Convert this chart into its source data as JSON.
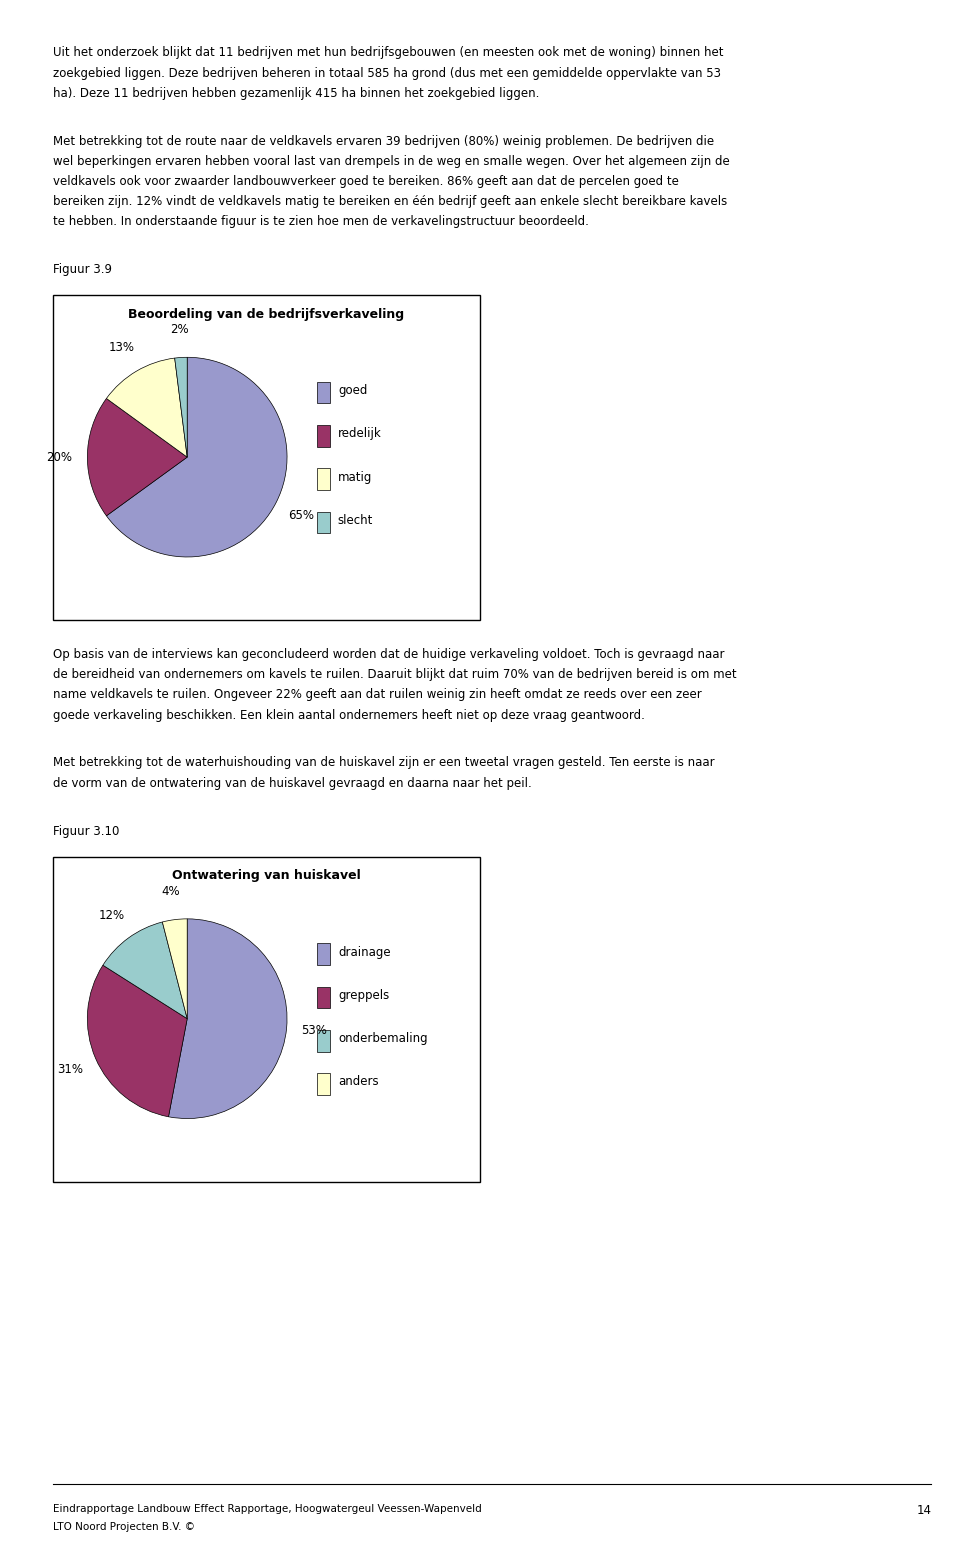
{
  "page_bg": "#ffffff",
  "page_width": 9.6,
  "page_height": 15.47,
  "dpi": 100,
  "header_text": [
    "Uit het onderzoek blijkt dat 11 bedrijven met hun bedrijfsgebouwen (en meesten ook met de woning) binnen het",
    "zoekgebied liggen. Deze bedrijven beheren in totaal 585 ha grond (dus met een gemiddelde oppervlakte van 53",
    "ha). Deze 11 bedrijven hebben gezamenlijk 415 ha binnen het zoekgebied liggen."
  ],
  "para1_text": [
    "Met betrekking tot de route naar de veldkavels ervaren 39 bedrijven (80%) weinig problemen. De bedrijven die",
    "wel beperkingen ervaren hebben vooral last van drempels in de weg en smalle wegen. Over het algemeen zijn de",
    "veldkavels ook voor zwaarder landbouwverkeer goed te bereiken. 86% geeft aan dat de percelen goed te",
    "bereiken zijn. 12% vindt de veldkavels matig te bereiken en één bedrijf geeft aan enkele slecht bereikbare kavels",
    "te hebben. In onderstaande figuur is te zien hoe men de verkavelingstructuur beoordeeld."
  ],
  "figuur1_label": "Figuur 3.9",
  "chart1_title": "Beoordeling van de bedrijfsverkaveling",
  "chart1_sizes": [
    65,
    20,
    13,
    2
  ],
  "chart1_colors": [
    "#9999cc",
    "#993366",
    "#ffffcc",
    "#99cccc"
  ],
  "chart1_legend": [
    "goed",
    "redelijk",
    "matig",
    "slecht"
  ],
  "chart1_legend_colors": [
    "#9999cc",
    "#993366",
    "#ffffcc",
    "#99cccc"
  ],
  "chart1_startangle": 90,
  "para2_text": [
    "Op basis van de interviews kan geconcludeerd worden dat de huidige verkaveling voldoet. Toch is gevraagd naar",
    "de bereidheid van ondernemers om kavels te ruilen. Daaruit blijkt dat ruim 70% van de bedrijven bereid is om met",
    "name veldkavels te ruilen. Ongeveer 22% geeft aan dat ruilen weinig zin heeft omdat ze reeds over een zeer",
    "goede verkaveling beschikken. Een klein aantal ondernemers heeft niet op deze vraag geantwoord."
  ],
  "para3_text": [
    "Met betrekking tot de waterhuishouding van de huiskavel zijn er een tweetal vragen gesteld. Ten eerste is naar",
    "de vorm van de ontwatering van de huiskavel gevraagd en daarna naar het peil."
  ],
  "figuur2_label": "Figuur 3.10",
  "chart2_title": "Ontwatering van huiskavel",
  "chart2_sizes": [
    53,
    31,
    12,
    4
  ],
  "chart2_colors": [
    "#9999cc",
    "#993366",
    "#99cccc",
    "#ffffcc"
  ],
  "chart2_legend": [
    "drainage",
    "greppels",
    "onderbemaling",
    "anders"
  ],
  "chart2_legend_colors": [
    "#9999cc",
    "#993366",
    "#99cccc",
    "#ffffcc"
  ],
  "chart2_startangle": 90,
  "footer_line1": "Eindrapportage Landbouw Effect Rapportage, Hoogwatergeul Veessen-Wapenveld",
  "footer_line2": "LTO Noord Projecten B.V. ©",
  "footer_page": "14"
}
